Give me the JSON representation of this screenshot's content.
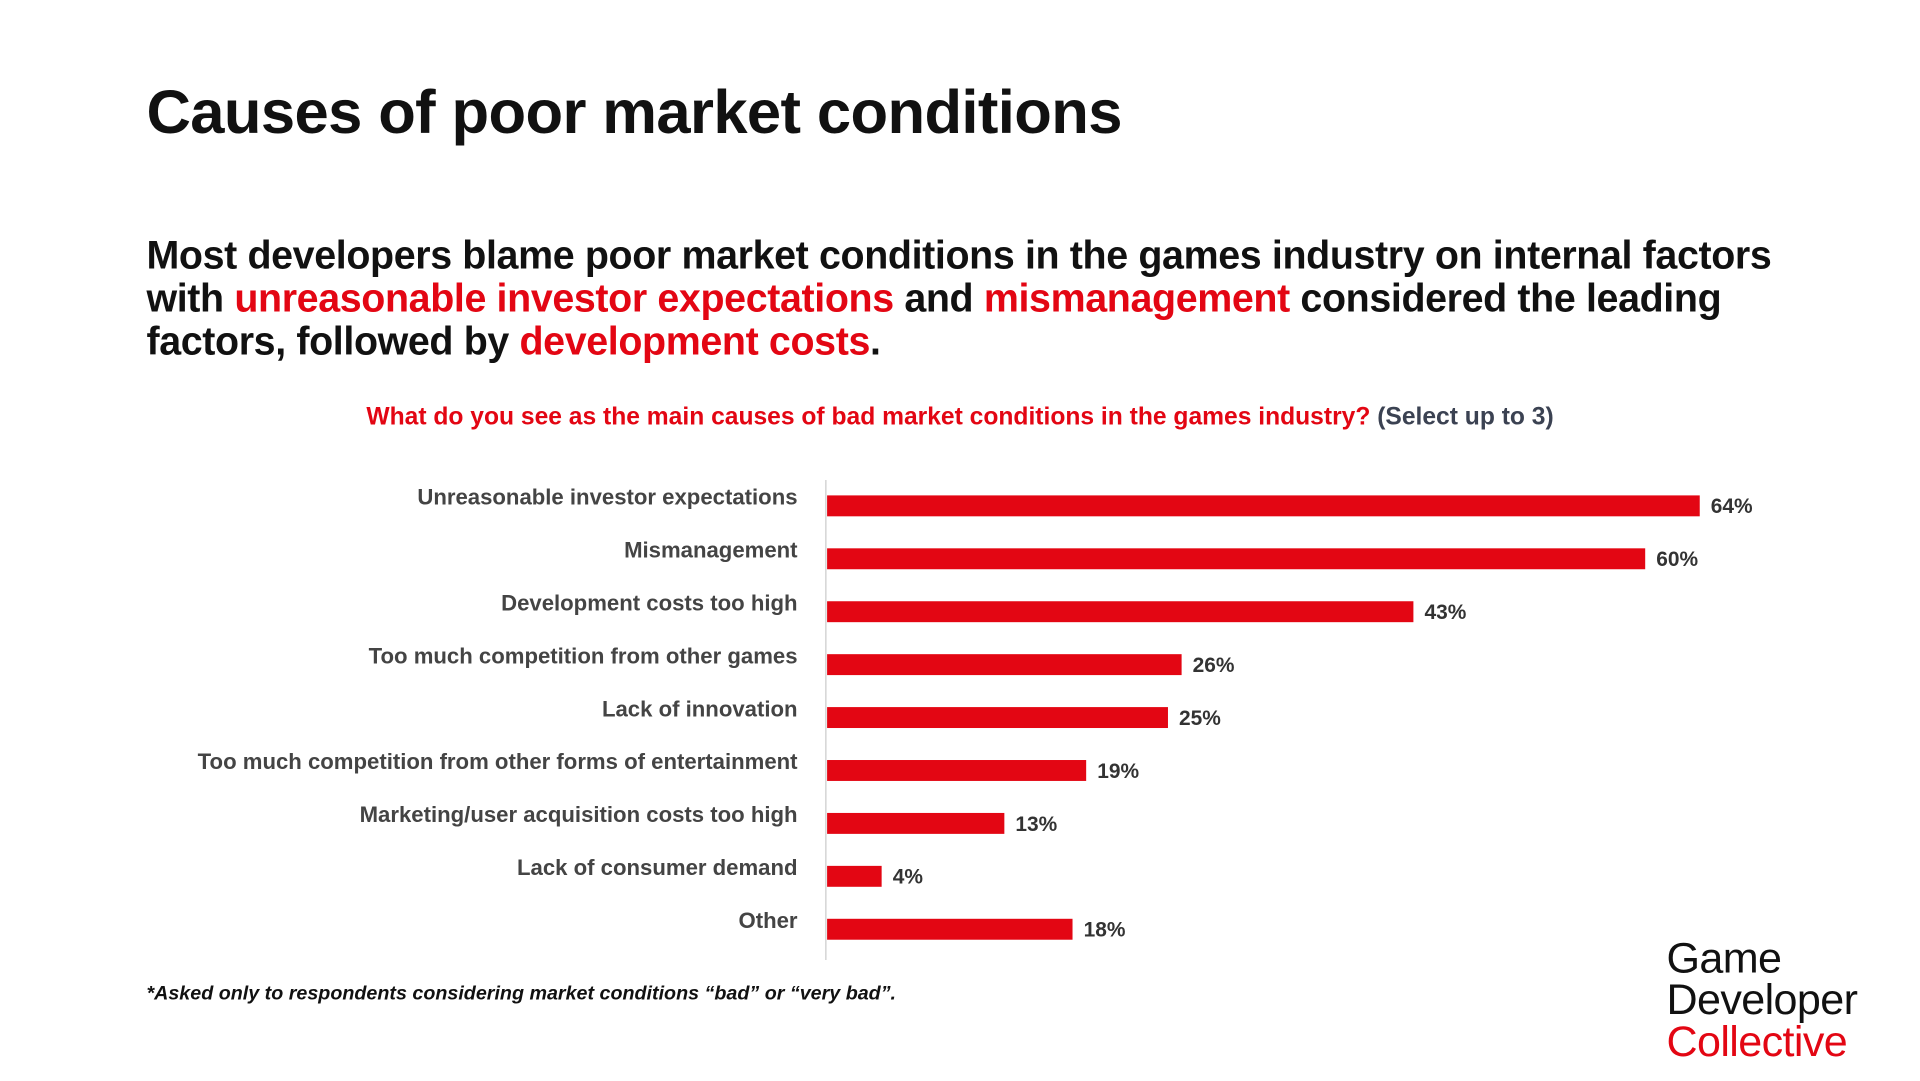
{
  "title": "Causes of poor market conditions",
  "subtitle": {
    "p1": "Most developers blame poor market conditions in the games industry on internal factors with ",
    "h1": "unreasonable investor expectations",
    "p2": " and ",
    "h2": "mismanagement",
    "p3": " considered the leading factors, followed by ",
    "h3": "development costs",
    "p4": "."
  },
  "question": {
    "main": "What do you see as the main causes of bad market conditions in the games industry?",
    "note": "(Select up to 3)"
  },
  "footnote": "*Asked only to respondents considering market conditions “bad” or “very bad”.",
  "logo": {
    "line1": "Game",
    "line2": "Developer",
    "line3": "Collective"
  },
  "colors": {
    "bar": "#e30613",
    "axis": "#cccccc",
    "label": "#444444"
  },
  "chart_data": {
    "type": "bar",
    "orientation": "horizontal",
    "title": "What do you see as the main causes of bad market conditions in the games industry? (Select up to 3)",
    "categories": [
      "Unreasonable investor expectations",
      "Mismanagement",
      "Development costs too high",
      "Too much competition from other games",
      "Lack of innovation",
      "Too much competition from other forms of entertainment",
      "Marketing/user acquisition costs too high",
      "Lack of consumer demand",
      "Other"
    ],
    "values": [
      64,
      60,
      43,
      26,
      25,
      19,
      13,
      4,
      18
    ],
    "value_labels": [
      "64%",
      "60%",
      "43%",
      "26%",
      "25%",
      "19%",
      "13%",
      "4%",
      "18%"
    ],
    "xlabel": "",
    "ylabel": "",
    "xlim": [
      0,
      64
    ],
    "grid": false,
    "legend": "none"
  }
}
